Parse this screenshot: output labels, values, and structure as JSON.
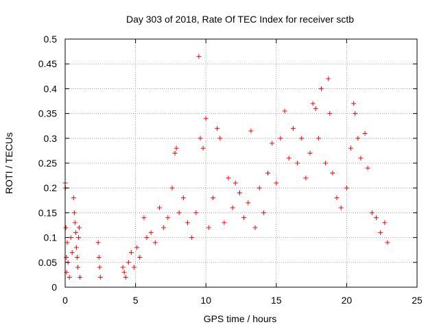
{
  "chart_data": {
    "type": "scatter",
    "title": "Day 303 of 2018, Rate Of TEC Index for receiver sctb",
    "xlabel": "GPS time / hours",
    "ylabel": "ROTI / TECUs",
    "xlim": [
      0,
      25
    ],
    "ylim": [
      0,
      0.5
    ],
    "x_ticks": [
      0,
      5,
      10,
      15,
      20,
      25
    ],
    "x_tick_labels": [
      "0",
      "5",
      "10",
      "15",
      "20",
      "25"
    ],
    "y_ticks": [
      0,
      0.05,
      0.1,
      0.15,
      0.2,
      0.25,
      0.3,
      0.35,
      0.4,
      0.45,
      0.5
    ],
    "y_tick_labels": [
      "0",
      "0.05",
      "0.1",
      "0.15",
      "0.2",
      "0.25",
      "0.3",
      "0.35",
      "0.4",
      "0.45",
      "0.5"
    ],
    "grid": true,
    "marker": "plus",
    "color": "#ff0000",
    "series": [
      {
        "points": [
          [
            0.0,
            0.21
          ],
          [
            0.02,
            0.2
          ],
          [
            0.05,
            0.12
          ],
          [
            0.08,
            0.06
          ],
          [
            0.1,
            0.03
          ],
          [
            0.15,
            0.09
          ],
          [
            0.2,
            0.05
          ],
          [
            0.3,
            0.02
          ],
          [
            0.4,
            0.1
          ],
          [
            0.5,
            0.07
          ],
          [
            0.6,
            0.18
          ],
          [
            0.65,
            0.15
          ],
          [
            0.7,
            0.13
          ],
          [
            0.75,
            0.11
          ],
          [
            0.8,
            0.08
          ],
          [
            0.85,
            0.06
          ],
          [
            0.9,
            0.04
          ],
          [
            0.95,
            0.1
          ],
          [
            1.0,
            0.12
          ],
          [
            1.05,
            0.02
          ],
          [
            2.35,
            0.09
          ],
          [
            2.4,
            0.06
          ],
          [
            2.45,
            0.04
          ],
          [
            2.5,
            0.02
          ],
          [
            4.1,
            0.04
          ],
          [
            4.2,
            0.03
          ],
          [
            4.3,
            0.02
          ],
          [
            4.5,
            0.05
          ],
          [
            4.7,
            0.07
          ],
          [
            4.9,
            0.04
          ],
          [
            5.1,
            0.08
          ],
          [
            5.3,
            0.06
          ],
          [
            5.6,
            0.14
          ],
          [
            5.8,
            0.1
          ],
          [
            6.1,
            0.11
          ],
          [
            6.4,
            0.09
          ],
          [
            6.7,
            0.16
          ],
          [
            7.0,
            0.12
          ],
          [
            7.3,
            0.14
          ],
          [
            7.6,
            0.2
          ],
          [
            7.8,
            0.27
          ],
          [
            7.9,
            0.28
          ],
          [
            8.1,
            0.15
          ],
          [
            8.4,
            0.18
          ],
          [
            8.7,
            0.13
          ],
          [
            9.0,
            0.1
          ],
          [
            9.3,
            0.15
          ],
          [
            9.5,
            0.465
          ],
          [
            9.6,
            0.3
          ],
          [
            9.8,
            0.28
          ],
          [
            10.0,
            0.34
          ],
          [
            10.2,
            0.12
          ],
          [
            10.5,
            0.18
          ],
          [
            10.8,
            0.32
          ],
          [
            11.0,
            0.3
          ],
          [
            11.3,
            0.13
          ],
          [
            11.6,
            0.22
          ],
          [
            11.9,
            0.16
          ],
          [
            12.1,
            0.21
          ],
          [
            12.4,
            0.19
          ],
          [
            12.7,
            0.14
          ],
          [
            13.0,
            0.17
          ],
          [
            13.2,
            0.315
          ],
          [
            13.5,
            0.12
          ],
          [
            13.8,
            0.2
          ],
          [
            14.1,
            0.15
          ],
          [
            14.4,
            0.23
          ],
          [
            14.7,
            0.29
          ],
          [
            15.0,
            0.21
          ],
          [
            15.3,
            0.3
          ],
          [
            15.6,
            0.355
          ],
          [
            15.9,
            0.26
          ],
          [
            16.2,
            0.32
          ],
          [
            16.5,
            0.25
          ],
          [
            16.8,
            0.3
          ],
          [
            17.1,
            0.22
          ],
          [
            17.4,
            0.27
          ],
          [
            17.6,
            0.37
          ],
          [
            17.8,
            0.36
          ],
          [
            18.0,
            0.3
          ],
          [
            18.2,
            0.4
          ],
          [
            18.5,
            0.25
          ],
          [
            18.7,
            0.42
          ],
          [
            18.8,
            0.35
          ],
          [
            19.0,
            0.23
          ],
          [
            19.3,
            0.18
          ],
          [
            19.6,
            0.16
          ],
          [
            20.0,
            0.2
          ],
          [
            20.3,
            0.28
          ],
          [
            20.5,
            0.37
          ],
          [
            20.6,
            0.35
          ],
          [
            20.8,
            0.3
          ],
          [
            21.0,
            0.26
          ],
          [
            21.3,
            0.31
          ],
          [
            21.5,
            0.24
          ],
          [
            21.8,
            0.15
          ],
          [
            22.1,
            0.14
          ],
          [
            22.4,
            0.11
          ],
          [
            22.7,
            0.13
          ],
          [
            22.9,
            0.09
          ]
        ]
      }
    ]
  }
}
